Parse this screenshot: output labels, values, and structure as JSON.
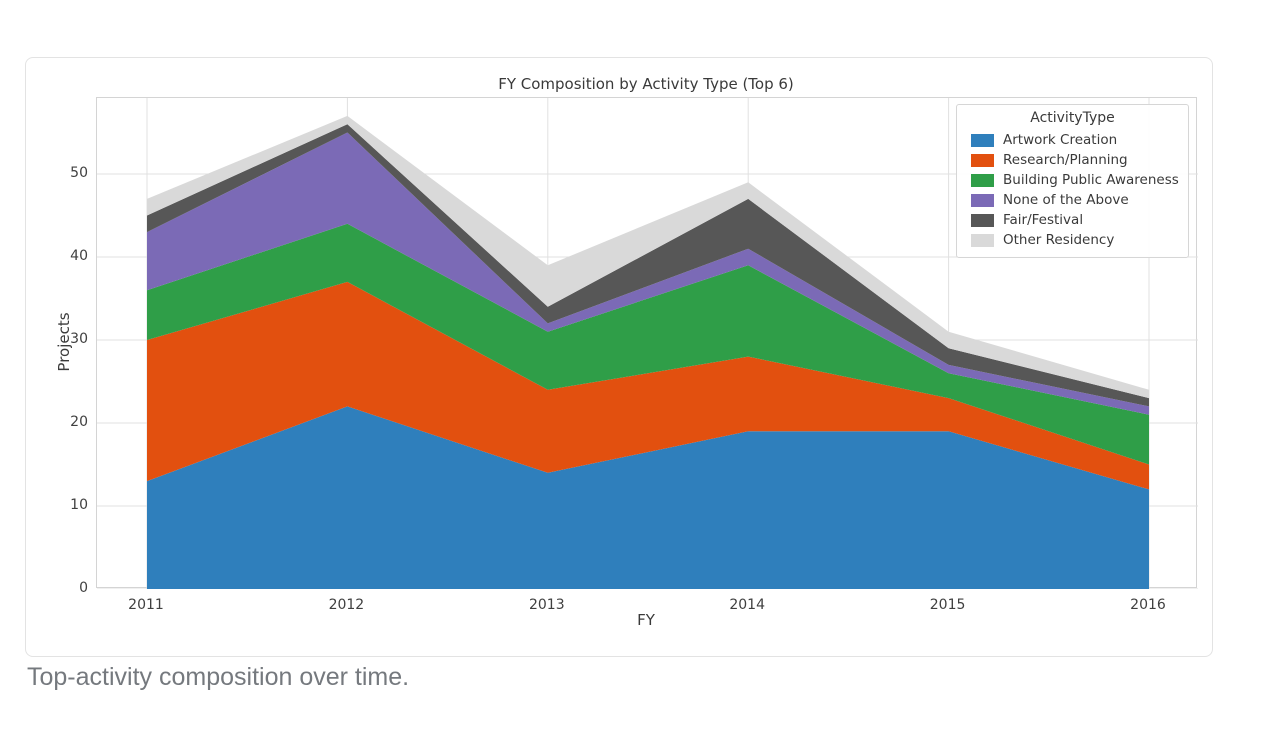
{
  "caption": "Top-activity composition over time.",
  "chart_data": {
    "type": "area",
    "stacked": true,
    "title": "FY Composition by Activity Type (Top 6)",
    "xlabel": "FY",
    "ylabel": "Projects",
    "x": [
      2011,
      2012,
      2013,
      2014,
      2015,
      2016
    ],
    "y_ticks": [
      0,
      10,
      20,
      30,
      40,
      50
    ],
    "ylim": [
      0,
      59.2
    ],
    "grid": true,
    "legend": {
      "title": "ActivityType",
      "position": "upper right"
    },
    "series": [
      {
        "name": "Artwork Creation",
        "color": "#2f7fbc",
        "values": [
          13,
          22,
          14,
          19,
          19,
          12
        ]
      },
      {
        "name": "Research/Planning",
        "color": "#e2500f",
        "values": [
          17,
          15,
          10,
          9,
          4,
          3
        ]
      },
      {
        "name": "Building Public Awareness",
        "color": "#2f9e48",
        "values": [
          6,
          7,
          7,
          11,
          3,
          6
        ]
      },
      {
        "name": "None of the Above",
        "color": "#7b6ab6",
        "values": [
          7,
          11,
          1,
          2,
          1,
          1
        ]
      },
      {
        "name": "Fair/Festival",
        "color": "#575757",
        "values": [
          2,
          1,
          2,
          6,
          2,
          1
        ]
      },
      {
        "name": "Other Residency",
        "color": "#d9d9d9",
        "values": [
          2,
          1,
          5,
          2,
          2,
          1
        ]
      }
    ],
    "totals": [
      47,
      57,
      39,
      49,
      31,
      24
    ]
  }
}
